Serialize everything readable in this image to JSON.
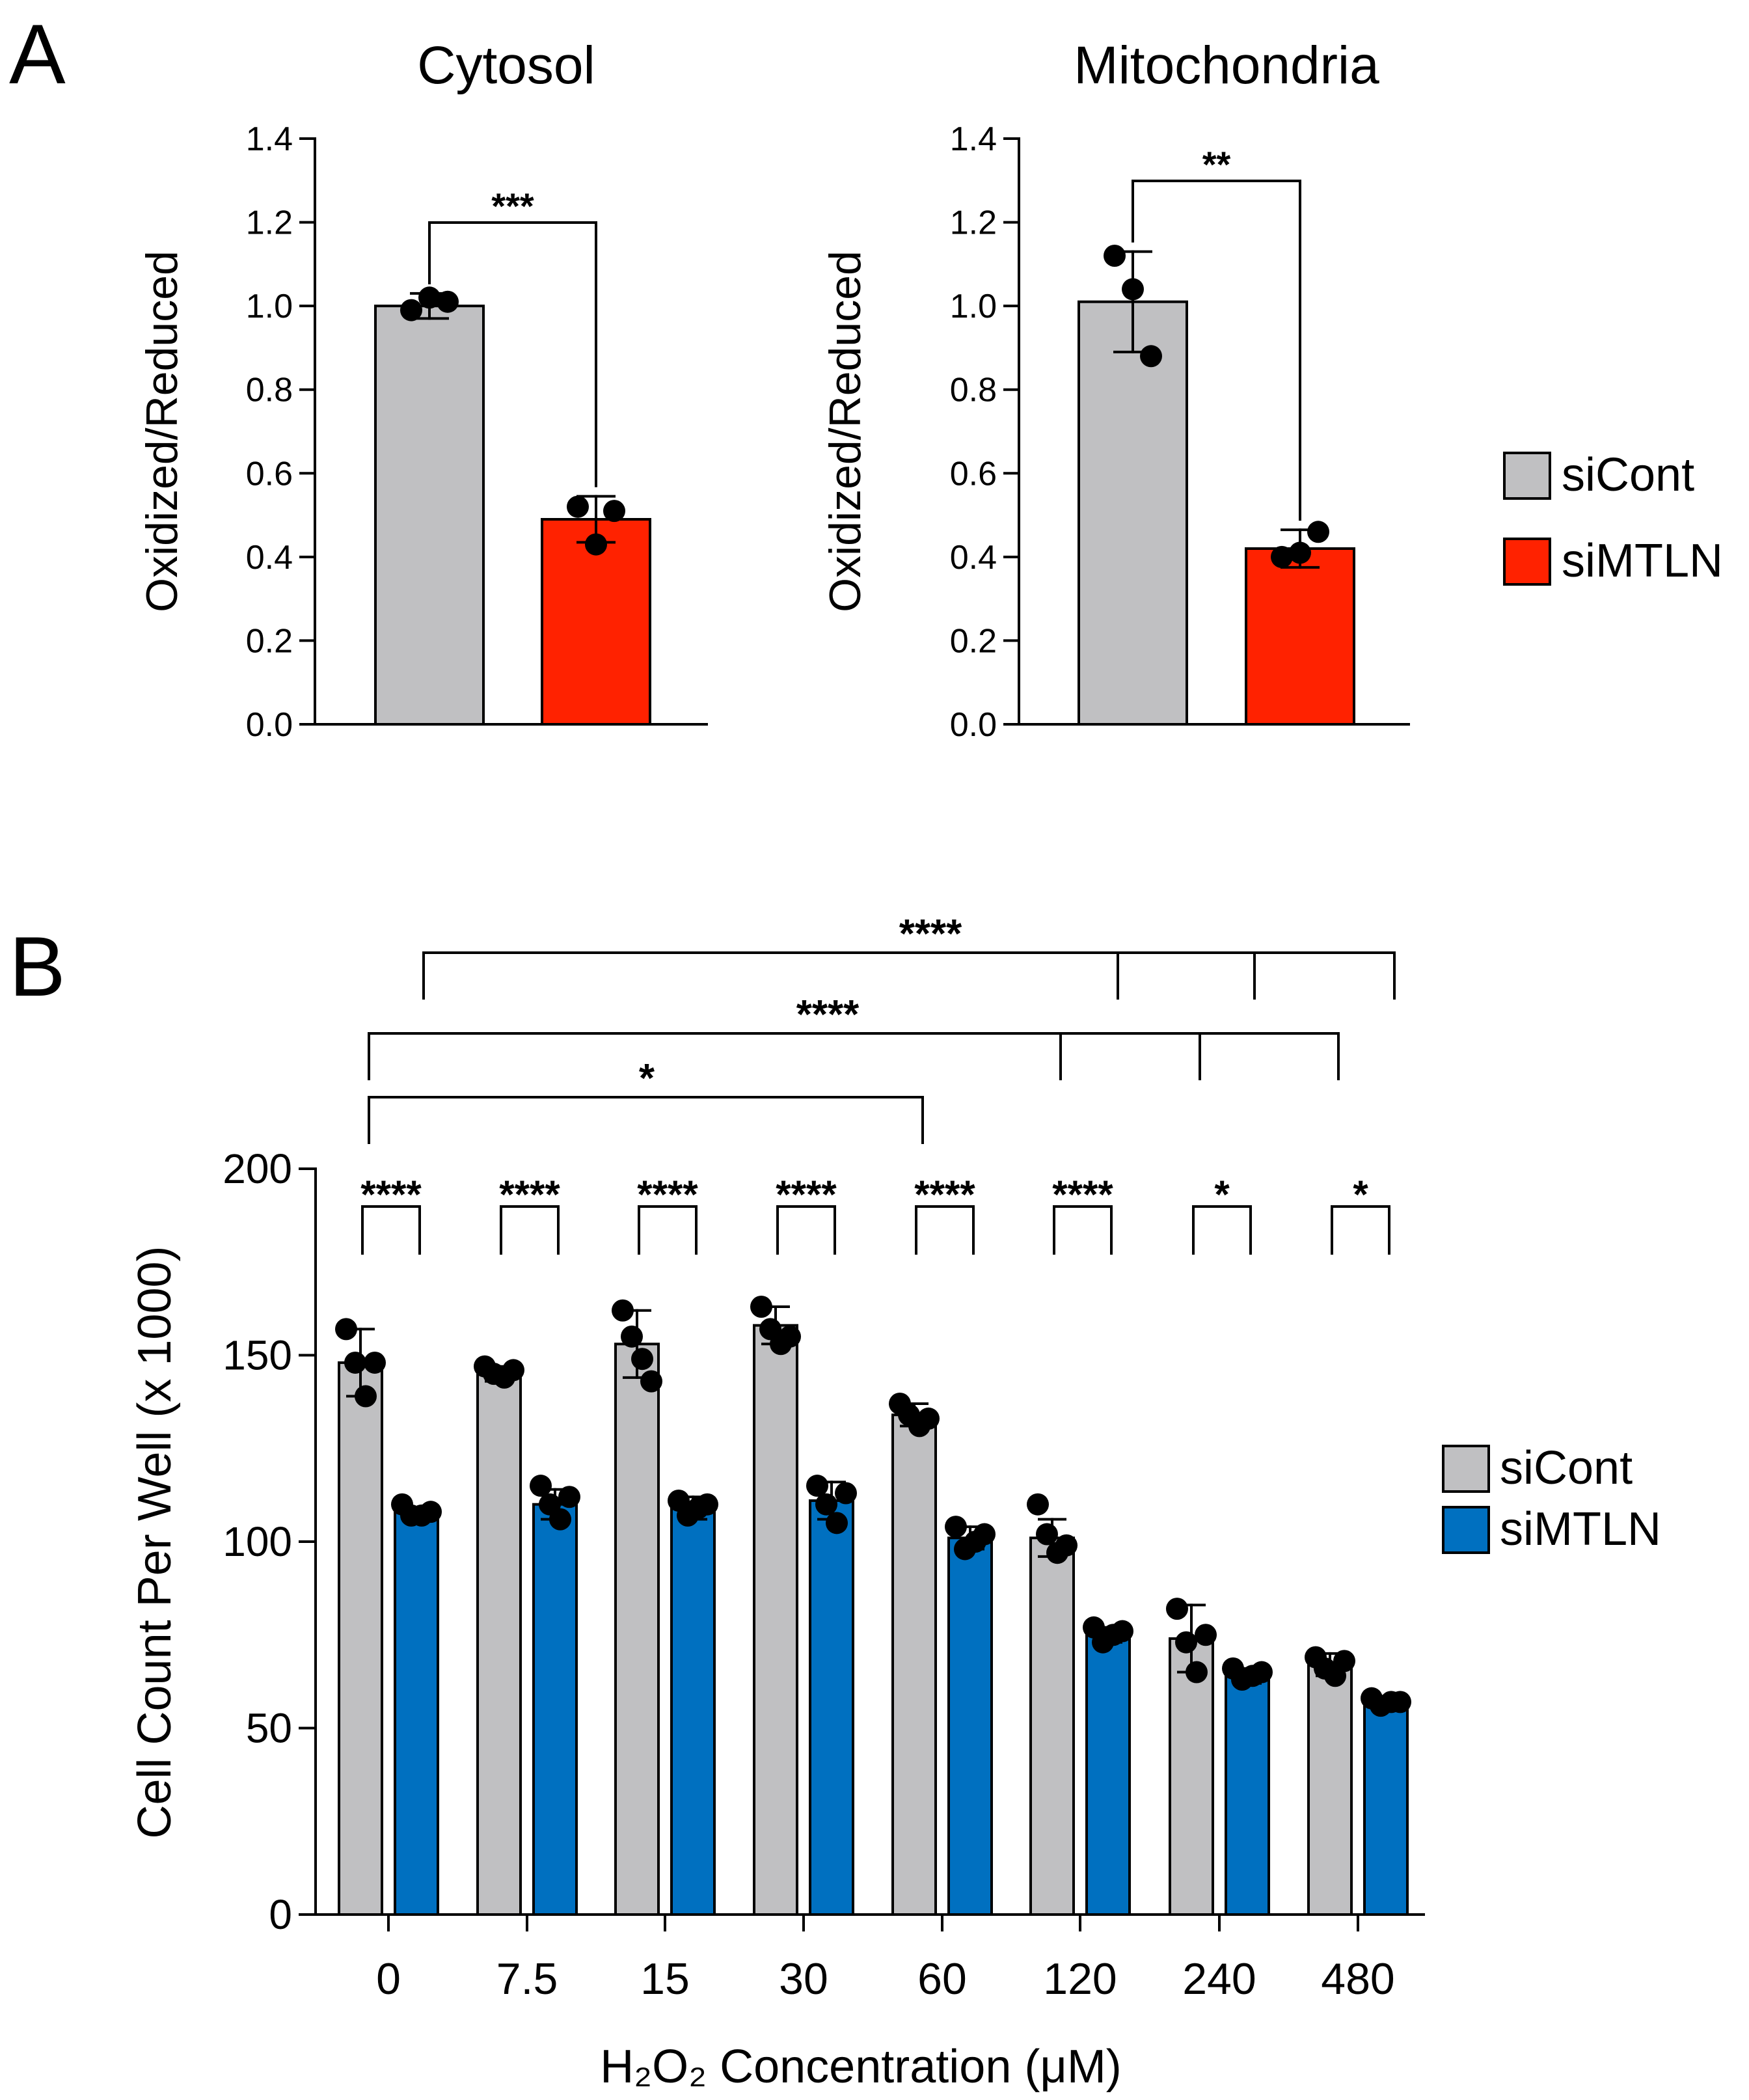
{
  "panels": {
    "a": {
      "letter": "A"
    },
    "b": {
      "letter": "B"
    }
  },
  "colors": {
    "control": "#c0c0c2",
    "si_mtln_red": "#ff2200",
    "si_mtln_blue": "#0070c0",
    "ink": "#000000"
  },
  "chart_data": [
    {
      "id": "cytosol",
      "type": "bar",
      "title": "Cytosol",
      "ylabel": "Oxidized/Reduced",
      "xlabel": "",
      "ylim": [
        0,
        1.4
      ],
      "yticks": [
        "0.0",
        "0.2",
        "0.4",
        "0.6",
        "0.8",
        "1.0",
        "1.2",
        "1.4"
      ],
      "categories": [
        "siCont",
        "siMTLN"
      ],
      "values": [
        1.0,
        0.49
      ],
      "errors": [
        0.03,
        0.055
      ],
      "points": [
        [
          0.99,
          1.02,
          1.01
        ],
        [
          0.52,
          0.43,
          0.51
        ]
      ],
      "significance": [
        {
          "between": [
            "siCont",
            "siMTLN"
          ],
          "label": "***"
        }
      ],
      "legend": {
        "position": "right",
        "entries": [
          "siCont",
          "siMTLN"
        ]
      }
    },
    {
      "id": "mitochondria",
      "type": "bar",
      "title": "Mitochondria",
      "ylabel": "Oxidized/Reduced",
      "xlabel": "",
      "ylim": [
        0,
        1.4
      ],
      "yticks": [
        "0.0",
        "0.2",
        "0.4",
        "0.6",
        "0.8",
        "1.0",
        "1.2",
        "1.4"
      ],
      "categories": [
        "siCont",
        "siMTLN"
      ],
      "values": [
        1.01,
        0.42
      ],
      "errors": [
        0.12,
        0.045
      ],
      "points": [
        [
          1.12,
          1.04,
          0.88
        ],
        [
          0.4,
          0.41,
          0.46
        ]
      ],
      "significance": [
        {
          "between": [
            "siCont",
            "siMTLN"
          ],
          "label": "**"
        }
      ]
    },
    {
      "id": "cell-count",
      "type": "bar",
      "title": "",
      "ylabel": "Cell Count Per Well (x 1000)",
      "xlabel": "H₂O₂ Concentration (μM)",
      "ylim": [
        0,
        200
      ],
      "yticks": [
        "0",
        "50",
        "100",
        "150",
        "200"
      ],
      "categories": [
        "0",
        "7.5",
        "15",
        "30",
        "60",
        "120",
        "240",
        "480"
      ],
      "series": [
        {
          "name": "siCont",
          "values": [
            148,
            145,
            153,
            158,
            134,
            101,
            74,
            67
          ],
          "errors": [
            9,
            2,
            9,
            5,
            3,
            5,
            9,
            3
          ],
          "points": [
            [
              157,
              148,
              139,
              148
            ],
            [
              147,
              145,
              144,
              146
            ],
            [
              162,
              155,
              149,
              143
            ],
            [
              163,
              157,
              153,
              155
            ],
            [
              137,
              134,
              131,
              133
            ],
            [
              110,
              102,
              97,
              99
            ],
            [
              82,
              73,
              65,
              75
            ],
            [
              69,
              66,
              64,
              68
            ]
          ]
        },
        {
          "name": "siMTLN",
          "values": [
            108,
            110,
            109,
            111,
            101,
            75,
            64,
            57
          ],
          "errors": [
            1,
            4,
            3,
            5,
            3,
            2,
            2,
            1
          ],
          "points": [
            [
              110,
              107,
              107,
              108
            ],
            [
              115,
              110,
              106,
              112
            ],
            [
              111,
              107,
              109,
              110
            ],
            [
              115,
              110,
              105,
              113
            ],
            [
              104,
              98,
              100,
              102
            ],
            [
              77,
              73,
              75,
              76
            ],
            [
              66,
              63,
              64,
              65
            ],
            [
              58,
              56,
              57,
              57
            ]
          ]
        }
      ],
      "pair_significance": [
        "****",
        "****",
        "****",
        "****",
        "****",
        "****",
        "*",
        "*"
      ],
      "group_significance": [
        {
          "series": "siMTLN",
          "from": "0",
          "to": [
            "120",
            "240",
            "480"
          ],
          "label": "****"
        },
        {
          "series": "siCont",
          "from": "0",
          "to": [
            "120",
            "240",
            "480"
          ],
          "label": "****"
        },
        {
          "series": "siCont",
          "from": "0",
          "to": [
            "60"
          ],
          "label": "*"
        }
      ],
      "legend": {
        "position": "right",
        "entries": [
          "siCont",
          "siMTLN"
        ]
      }
    }
  ]
}
